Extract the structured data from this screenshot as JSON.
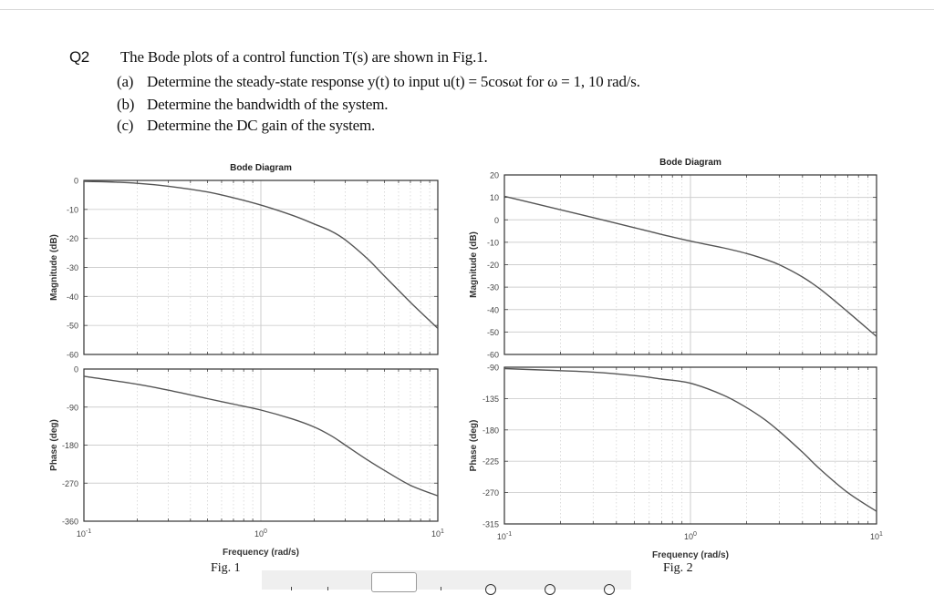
{
  "question": {
    "number": "Q2",
    "intro": "The Bode plots of a control function T(s) are shown in Fig.1.",
    "parts": [
      {
        "label": "(a)",
        "text": "Determine the steady-state response y(t) to input u(t) = 5cosωt for ω = 1,  10 rad/s."
      },
      {
        "label": "(b)",
        "text": "Determine the bandwidth of the system."
      },
      {
        "label": "(c)",
        "text": "Determine the DC gain of the system."
      }
    ]
  },
  "figures": [
    {
      "caption": "Fig. 1"
    },
    {
      "caption": "Fig. 2"
    }
  ],
  "toolbar": {
    "page_input_value": ""
  },
  "chart_data": [
    {
      "type": "line",
      "figure": "Fig. 1",
      "panel": "magnitude",
      "title": "Bode Diagram",
      "xlabel": "Frequency  (rad/s)",
      "ylabel": "Magnitude (dB)",
      "xscale": "log",
      "xlim": [
        0.1,
        10
      ],
      "ylim": [
        -60,
        0
      ],
      "xticks": [
        "10^-1",
        "10^0",
        "10^1"
      ],
      "yticks": [
        0,
        -10,
        -20,
        -30,
        -40,
        -50,
        -60
      ],
      "grid": true,
      "x": [
        0.1,
        0.15,
        0.2,
        0.3,
        0.5,
        0.7,
        1,
        1.5,
        2,
        2.5,
        3,
        4,
        5,
        7,
        10
      ],
      "values": [
        -0.3,
        -0.6,
        -1,
        -2,
        -4,
        -6,
        -8.5,
        -12,
        -15,
        -17.5,
        -20.5,
        -27,
        -33,
        -42,
        -51
      ]
    },
    {
      "type": "line",
      "figure": "Fig. 1",
      "panel": "phase",
      "xlabel": "Frequency  (rad/s)",
      "ylabel": "Phase (deg)",
      "xscale": "log",
      "xlim": [
        0.1,
        10
      ],
      "ylim": [
        -360,
        0
      ],
      "xticks": [
        "10^-1",
        "10^0",
        "10^1"
      ],
      "yticks": [
        0,
        -90,
        -180,
        -270,
        -360
      ],
      "grid": true,
      "x": [
        0.1,
        0.2,
        0.3,
        0.5,
        0.7,
        1,
        1.5,
        2,
        2.5,
        3,
        4,
        5,
        7,
        10
      ],
      "values": [
        -17,
        -36,
        -50,
        -70,
        -83,
        -97,
        -118,
        -137,
        -158,
        -180,
        -215,
        -240,
        -275,
        -300
      ]
    },
    {
      "type": "line",
      "figure": "Fig. 2",
      "panel": "magnitude",
      "title": "Bode Diagram",
      "xlabel": "Frequency  (rad/s)",
      "ylabel": "Magnitude (dB)",
      "xscale": "log",
      "xlim": [
        0.1,
        10
      ],
      "ylim": [
        -60,
        20
      ],
      "xticks": [
        "10^-1",
        "10^0",
        "10^1"
      ],
      "yticks": [
        20,
        10,
        0,
        -10,
        -20,
        -30,
        -40,
        -50,
        -60
      ],
      "grid": true,
      "x": [
        0.1,
        0.2,
        0.3,
        0.5,
        0.7,
        1,
        1.5,
        2,
        2.5,
        3,
        4,
        5,
        7,
        10
      ],
      "values": [
        10.5,
        4.5,
        1,
        -3.5,
        -6.5,
        -9.5,
        -12.5,
        -15,
        -17.5,
        -20,
        -25.5,
        -31,
        -41,
        -52
      ]
    },
    {
      "type": "line",
      "figure": "Fig. 2",
      "panel": "phase",
      "xlabel": "Frequency  (rad/s)",
      "ylabel": "Phase (deg)",
      "xscale": "log",
      "xlim": [
        0.1,
        10
      ],
      "ylim": [
        -315,
        -90
      ],
      "xticks": [
        "10^-1",
        "10^0",
        "10^1"
      ],
      "yticks": [
        -90,
        -135,
        -180,
        -225,
        -270,
        -315
      ],
      "grid": true,
      "x": [
        0.1,
        0.2,
        0.3,
        0.5,
        0.7,
        1,
        1.5,
        2,
        2.5,
        3,
        4,
        5,
        7,
        10
      ],
      "values": [
        -92,
        -95,
        -97,
        -102,
        -107,
        -113,
        -130,
        -148,
        -165,
        -182,
        -212,
        -237,
        -270,
        -297
      ]
    }
  ]
}
